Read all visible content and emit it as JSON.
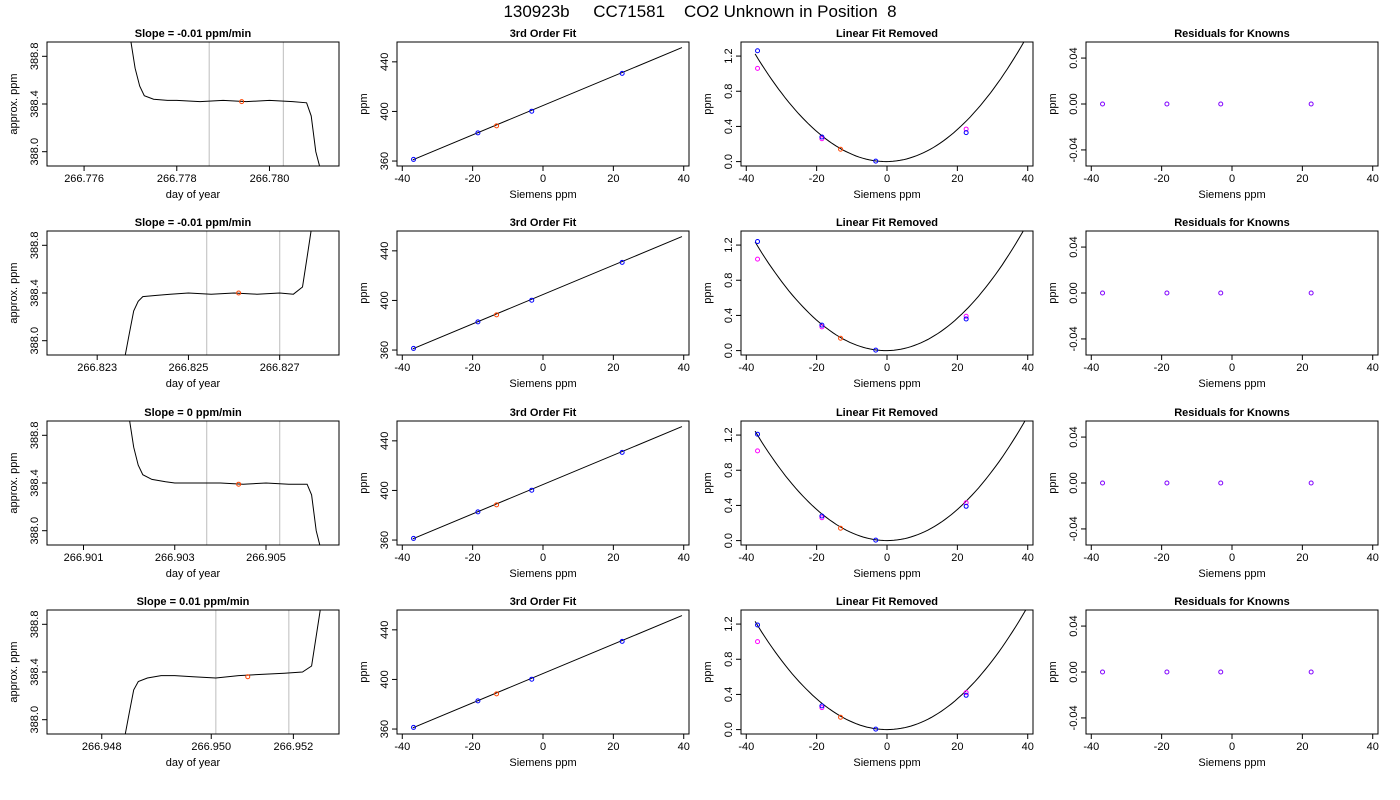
{
  "figure": {
    "title": "130923b     CC71581    CO2 Unknown in Position  8"
  },
  "colors": {
    "line": "#000000",
    "vline": "#c8c8c8",
    "known_points": "#0000ff",
    "unknown_point": "#ff4500",
    "residual_points": "#8000ff",
    "alt_points": "#ff00ff"
  },
  "chart_data": [
    {
      "type": "line",
      "title": "Slope =  -0.01  ppm/min",
      "xlabel": "day of year",
      "ylabel": "approx. ppm",
      "xlim": [
        266.7752,
        266.7815
      ],
      "ylim": [
        387.88,
        388.92
      ],
      "xticks": [
        266.776,
        266.778,
        266.78
      ],
      "xtick_labels": [
        "266.776",
        "266.778",
        "266.780"
      ],
      "yticks": [
        388.0,
        388.4,
        388.8
      ],
      "ytick_labels": [
        "388.0",
        "388.4",
        "388.8"
      ],
      "vlines": [
        266.7787,
        266.7803
      ],
      "trace": {
        "x": [
          266.777,
          266.7771,
          266.7772,
          266.7773,
          266.7775,
          266.7778,
          266.778,
          266.7785,
          266.779,
          266.7795,
          266.78,
          266.7805,
          266.7808,
          266.7809,
          266.781,
          266.7811
        ],
        "y": [
          388.95,
          388.7,
          388.55,
          388.47,
          388.44,
          388.43,
          388.43,
          388.42,
          388.43,
          388.42,
          388.43,
          388.42,
          388.41,
          388.3,
          388.0,
          387.85
        ]
      },
      "marker": {
        "x": 266.7794,
        "y": 388.42
      }
    },
    {
      "type": "scatter",
      "title": "3rd Order Fit",
      "xlabel": "Siemens ppm",
      "ylabel": "ppm",
      "xlim": [
        -41.5,
        41.5
      ],
      "ylim": [
        356,
        456
      ],
      "xticks": [
        -40,
        -20,
        0,
        20,
        40
      ],
      "xtick_labels": [
        "-40",
        "-20",
        "0",
        "20",
        "40"
      ],
      "yticks": [
        360,
        400,
        440
      ],
      "ytick_labels": [
        "360",
        "400",
        "440"
      ],
      "fit_line": {
        "x": [
          -37,
          39.5
        ],
        "y": [
          361,
          451.5
        ]
      },
      "known": {
        "x": [
          -36.8,
          -18.5,
          -3.2,
          22.5
        ],
        "y": [
          361.3,
          382.7,
          400.2,
          430.7
        ]
      },
      "unknown": {
        "x": [
          -13.2
        ],
        "y": [
          388.4
        ]
      }
    },
    {
      "type": "scatter",
      "title": "Linear Fit Removed",
      "xlabel": "Siemens ppm",
      "ylabel": "ppm",
      "xlim": [
        -41.5,
        41.5
      ],
      "ylim": [
        -0.05,
        1.36
      ],
      "xticks": [
        -40,
        -20,
        0,
        20,
        40
      ],
      "xtick_labels": [
        "-40",
        "-20",
        "0",
        "20",
        "40"
      ],
      "yticks": [
        0.0,
        0.4,
        0.8,
        1.2
      ],
      "ytick_labels": [
        "0.0",
        "0.4",
        "0.8",
        "1.2"
      ],
      "quadratic": {
        "a": 0.000885,
        "x0": -0.3,
        "c": 0.0,
        "x_range": [
          -37.5,
          39
        ]
      },
      "known": {
        "x": [
          -36.8,
          -18.5,
          -3.2,
          22.5
        ],
        "y": [
          1.26,
          0.28,
          0.005,
          0.33
        ]
      },
      "alt": {
        "x": [
          -36.8,
          -18.5,
          22.5
        ],
        "y": [
          1.06,
          0.26,
          0.37
        ]
      },
      "unknown": {
        "x": [
          -13.2
        ],
        "y": [
          0.14
        ]
      }
    },
    {
      "type": "scatter",
      "title": "Residuals for Knowns",
      "xlabel": "Siemens ppm",
      "ylabel": "ppm",
      "xlim": [
        -41.5,
        41.5
      ],
      "ylim": [
        -0.054,
        0.054
      ],
      "xticks": [
        -40,
        -20,
        0,
        20,
        40
      ],
      "xtick_labels": [
        "-40",
        "-20",
        "0",
        "20",
        "40"
      ],
      "yticks": [
        -0.04,
        0.0,
        0.04
      ],
      "ytick_labels": [
        "-0.04",
        "0.00",
        "0.04"
      ],
      "residuals": {
        "x": [
          -36.8,
          -18.5,
          -3.2,
          22.5
        ],
        "y": [
          0,
          0,
          0,
          0
        ]
      }
    },
    {
      "type": "line",
      "title": "Slope =  -0.01  ppm/min",
      "xlabel": "day of year",
      "ylabel": "approx. ppm",
      "xlim": [
        266.8219,
        266.8283
      ],
      "ylim": [
        387.88,
        388.92
      ],
      "xticks": [
        266.823,
        266.825,
        266.827
      ],
      "xtick_labels": [
        "266.823",
        "266.825",
        "266.827"
      ],
      "yticks": [
        388.0,
        388.4,
        388.8
      ],
      "ytick_labels": [
        "388.0",
        "388.4",
        "388.8"
      ],
      "vlines": [
        266.8254,
        266.827
      ],
      "trace": {
        "x": [
          266.8236,
          266.8237,
          266.8238,
          266.8239,
          266.824,
          266.8243,
          266.8246,
          266.825,
          266.8255,
          266.826,
          266.8265,
          266.827,
          266.8273,
          266.8275,
          266.8276,
          266.8277
        ],
        "y": [
          387.85,
          388.05,
          388.25,
          388.33,
          388.37,
          388.38,
          388.39,
          388.4,
          388.39,
          388.4,
          388.39,
          388.4,
          388.39,
          388.45,
          388.7,
          388.95
        ]
      },
      "marker": {
        "x": 266.8261,
        "y": 388.4
      }
    },
    {
      "type": "scatter",
      "title": "3rd Order Fit",
      "xlabel": "Siemens ppm",
      "ylabel": "ppm",
      "xlim": [
        -41.5,
        41.5
      ],
      "ylim": [
        356,
        456
      ],
      "xticks": [
        -40,
        -20,
        0,
        20,
        40
      ],
      "xtick_labels": [
        "-40",
        "-20",
        "0",
        "20",
        "40"
      ],
      "yticks": [
        360,
        400,
        440
      ],
      "ytick_labels": [
        "360",
        "400",
        "440"
      ],
      "fit_line": {
        "x": [
          -37,
          39.5
        ],
        "y": [
          361,
          451.5
        ]
      },
      "known": {
        "x": [
          -36.8,
          -18.5,
          -3.2,
          22.5
        ],
        "y": [
          361.3,
          382.7,
          400.2,
          430.7
        ]
      },
      "unknown": {
        "x": [
          -13.2
        ],
        "y": [
          388.4
        ]
      }
    },
    {
      "type": "scatter",
      "title": "Linear Fit Removed",
      "xlabel": "Siemens ppm",
      "ylabel": "ppm",
      "xlim": [
        -41.5,
        41.5
      ],
      "ylim": [
        -0.05,
        1.36
      ],
      "xticks": [
        -40,
        -20,
        0,
        20,
        40
      ],
      "xtick_labels": [
        "-40",
        "-20",
        "0",
        "20",
        "40"
      ],
      "yticks": [
        0.0,
        0.4,
        0.8,
        1.2
      ],
      "ytick_labels": [
        "0.0",
        "0.4",
        "0.8",
        "1.2"
      ],
      "quadratic": {
        "a": 0.000893,
        "x0": -0.3,
        "c": 0.0,
        "x_range": [
          -37.5,
          39.5
        ]
      },
      "known": {
        "x": [
          -36.8,
          -18.5,
          -3.2,
          22.5
        ],
        "y": [
          1.24,
          0.29,
          0.005,
          0.36
        ]
      },
      "alt": {
        "x": [
          -36.8,
          -18.5,
          22.5
        ],
        "y": [
          1.04,
          0.27,
          0.39
        ]
      },
      "unknown": {
        "x": [
          -13.2
        ],
        "y": [
          0.14
        ]
      }
    },
    {
      "type": "scatter",
      "title": "Residuals for Knowns",
      "xlabel": "Siemens ppm",
      "ylabel": "ppm",
      "xlim": [
        -41.5,
        41.5
      ],
      "ylim": [
        -0.054,
        0.054
      ],
      "xticks": [
        -40,
        -20,
        0,
        20,
        40
      ],
      "xtick_labels": [
        "-40",
        "-20",
        "0",
        "20",
        "40"
      ],
      "yticks": [
        -0.04,
        0.0,
        0.04
      ],
      "ytick_labels": [
        "-0.04",
        "0.00",
        "0.04"
      ],
      "residuals": {
        "x": [
          -36.8,
          -18.5,
          -3.2,
          22.5
        ],
        "y": [
          0,
          0,
          0,
          0
        ]
      }
    },
    {
      "type": "line",
      "title": "Slope =  0  ppm/min",
      "xlabel": "day of year",
      "ylabel": "approx. ppm",
      "xlim": [
        266.9002,
        266.9066
      ],
      "ylim": [
        387.88,
        388.92
      ],
      "xticks": [
        266.901,
        266.903,
        266.905
      ],
      "xtick_labels": [
        "266.901",
        "266.903",
        "266.905"
      ],
      "yticks": [
        388.0,
        388.4,
        388.8
      ],
      "ytick_labels": [
        "388.0",
        "388.4",
        "388.8"
      ],
      "vlines": [
        266.9037,
        266.9053
      ],
      "trace": {
        "x": [
          266.902,
          266.9021,
          266.9022,
          266.9023,
          266.9025,
          266.9028,
          266.903,
          266.9035,
          266.904,
          266.9045,
          266.905,
          266.9055,
          266.9059,
          266.906,
          266.9061,
          266.9062
        ],
        "y": [
          388.95,
          388.7,
          388.55,
          388.47,
          388.43,
          388.41,
          388.4,
          388.4,
          388.4,
          388.39,
          388.4,
          388.39,
          388.39,
          388.3,
          388.0,
          387.85
        ]
      },
      "marker": {
        "x": 266.9044,
        "y": 388.39
      }
    },
    {
      "type": "scatter",
      "title": "3rd Order Fit",
      "xlabel": "Siemens ppm",
      "ylabel": "ppm",
      "xlim": [
        -41.5,
        41.5
      ],
      "ylim": [
        356,
        456
      ],
      "xticks": [
        -40,
        -20,
        0,
        20,
        40
      ],
      "xtick_labels": [
        "-40",
        "-20",
        "0",
        "20",
        "40"
      ],
      "yticks": [
        360,
        400,
        440
      ],
      "ytick_labels": [
        "360",
        "400",
        "440"
      ],
      "fit_line": {
        "x": [
          -37,
          39.5
        ],
        "y": [
          361,
          451.5
        ]
      },
      "known": {
        "x": [
          -36.8,
          -18.5,
          -3.2,
          22.5
        ],
        "y": [
          361.3,
          382.7,
          400.2,
          430.7
        ]
      },
      "unknown": {
        "x": [
          -13.2
        ],
        "y": [
          388.4
        ]
      }
    },
    {
      "type": "scatter",
      "title": "Linear Fit Removed",
      "xlabel": "Siemens ppm",
      "ylabel": "ppm",
      "xlim": [
        -41.5,
        41.5
      ],
      "ylim": [
        -0.05,
        1.36
      ],
      "xticks": [
        -40,
        -20,
        0,
        20,
        40
      ],
      "xtick_labels": [
        "-40",
        "-20",
        "0",
        "20",
        "40"
      ],
      "yticks": [
        0.0,
        0.4,
        0.8,
        1.2
      ],
      "ytick_labels": [
        "0.0",
        "0.4",
        "0.8",
        "1.2"
      ],
      "quadratic": {
        "a": 0.000885,
        "x0": 0.0,
        "c": 0.0,
        "x_range": [
          -37.5,
          39.5
        ]
      },
      "known": {
        "x": [
          -36.8,
          -18.5,
          -3.2,
          22.5
        ],
        "y": [
          1.21,
          0.28,
          0.005,
          0.39
        ]
      },
      "alt": {
        "x": [
          -36.8,
          -18.5,
          22.5
        ],
        "y": [
          1.02,
          0.26,
          0.43
        ]
      },
      "unknown": {
        "x": [
          -13.2
        ],
        "y": [
          0.14
        ]
      }
    },
    {
      "type": "scatter",
      "title": "Residuals for Knowns",
      "xlabel": "Siemens ppm",
      "ylabel": "ppm",
      "xlim": [
        -41.5,
        41.5
      ],
      "ylim": [
        -0.054,
        0.054
      ],
      "xticks": [
        -40,
        -20,
        0,
        20,
        40
      ],
      "xtick_labels": [
        "-40",
        "-20",
        "0",
        "20",
        "40"
      ],
      "yticks": [
        -0.04,
        0.0,
        0.04
      ],
      "ytick_labels": [
        "-0.04",
        "0.00",
        "0.04"
      ],
      "residuals": {
        "x": [
          -36.8,
          -18.5,
          -3.2,
          22.5
        ],
        "y": [
          0,
          0,
          0,
          0
        ]
      }
    },
    {
      "type": "line",
      "title": "Slope =  0.01  ppm/min",
      "xlabel": "day of year",
      "ylabel": "approx. ppm",
      "xlim": [
        266.9468,
        266.9532
      ],
      "ylim": [
        387.88,
        388.92
      ],
      "xticks": [
        266.948,
        266.9504,
        266.9522
      ],
      "xtick_labels": [
        "266.948",
        "266.950",
        "266.952"
      ],
      "yticks": [
        388.0,
        388.4,
        388.8
      ],
      "ytick_labels": [
        "388.0",
        "388.4",
        "388.8"
      ],
      "vlines": [
        266.9505,
        266.9521
      ],
      "trace": {
        "x": [
          266.9485,
          266.9486,
          266.9487,
          266.9488,
          266.949,
          266.9493,
          266.9496,
          266.95,
          266.9505,
          266.951,
          266.9515,
          266.952,
          266.9524,
          266.9526,
          266.9527,
          266.9528
        ],
        "y": [
          387.85,
          388.05,
          388.25,
          388.32,
          388.35,
          388.37,
          388.37,
          388.36,
          388.35,
          388.37,
          388.38,
          388.39,
          388.4,
          388.45,
          388.7,
          388.95
        ]
      },
      "marker": {
        "x": 266.9512,
        "y": 388.36
      }
    },
    {
      "type": "scatter",
      "title": "3rd Order Fit",
      "xlabel": "Siemens ppm",
      "ylabel": "ppm",
      "xlim": [
        -41.5,
        41.5
      ],
      "ylim": [
        356,
        456
      ],
      "xticks": [
        -40,
        -20,
        0,
        20,
        40
      ],
      "xtick_labels": [
        "-40",
        "-20",
        "0",
        "20",
        "40"
      ],
      "yticks": [
        360,
        400,
        440
      ],
      "ytick_labels": [
        "360",
        "400",
        "440"
      ],
      "fit_line": {
        "x": [
          -37,
          39.5
        ],
        "y": [
          361,
          451.5
        ]
      },
      "known": {
        "x": [
          -36.8,
          -18.5,
          -3.2,
          22.5
        ],
        "y": [
          361.3,
          382.7,
          400.2,
          430.7
        ]
      },
      "unknown": {
        "x": [
          -13.2
        ],
        "y": [
          388.4
        ]
      }
    },
    {
      "type": "scatter",
      "title": "Linear Fit Removed",
      "xlabel": "Siemens ppm",
      "ylabel": "ppm",
      "xlim": [
        -41.5,
        41.5
      ],
      "ylim": [
        -0.05,
        1.36
      ],
      "xticks": [
        -40,
        -20,
        0,
        20,
        40
      ],
      "xtick_labels": [
        "-40",
        "-20",
        "0",
        "20",
        "40"
      ],
      "yticks": [
        0.0,
        0.4,
        0.8,
        1.2
      ],
      "ytick_labels": [
        "0.0",
        "0.4",
        "0.8",
        "1.2"
      ],
      "quadratic": {
        "a": 0.000875,
        "x0": 0.0,
        "c": 0.0,
        "x_range": [
          -37.5,
          39.5
        ]
      },
      "known": {
        "x": [
          -36.8,
          -18.5,
          -3.2,
          22.5
        ],
        "y": [
          1.19,
          0.27,
          0.005,
          0.39
        ]
      },
      "alt": {
        "x": [
          -36.8,
          -18.5,
          22.5
        ],
        "y": [
          1.0,
          0.25,
          0.42
        ]
      },
      "unknown": {
        "x": [
          -13.2
        ],
        "y": [
          0.14
        ]
      }
    },
    {
      "type": "scatter",
      "title": "Residuals for Knowns",
      "xlabel": "Siemens ppm",
      "ylabel": "ppm",
      "xlim": [
        -41.5,
        41.5
      ],
      "ylim": [
        -0.054,
        0.054
      ],
      "xticks": [
        -40,
        -20,
        0,
        20,
        40
      ],
      "xtick_labels": [
        "-40",
        "-20",
        "0",
        "20",
        "40"
      ],
      "yticks": [
        -0.04,
        0.0,
        0.04
      ],
      "ytick_labels": [
        "-0.04",
        "0.00",
        "0.04"
      ],
      "residuals": {
        "x": [
          -36.8,
          -18.5,
          -3.2,
          22.5
        ],
        "y": [
          0,
          0,
          0,
          0
        ]
      }
    }
  ]
}
